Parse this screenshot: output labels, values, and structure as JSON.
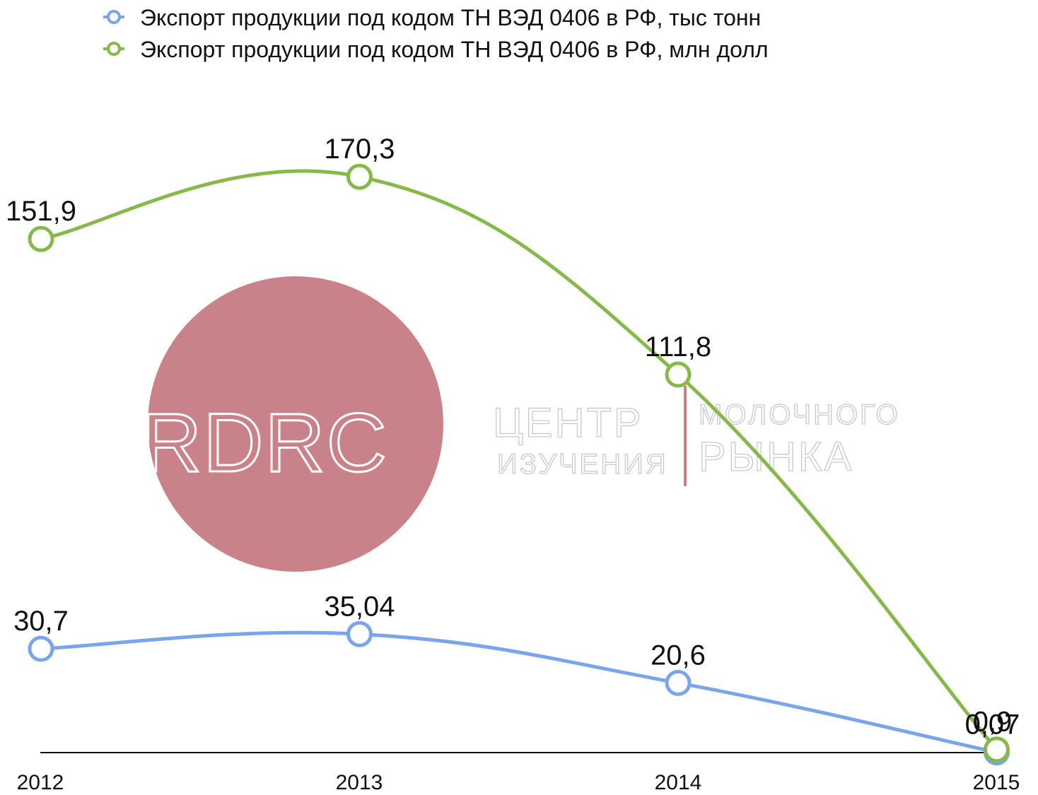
{
  "colors": {
    "series_tonnes": "#7aa5ec",
    "series_usd": "#86b84a",
    "axis": "#111111",
    "watermark_circle": "#c9828a",
    "watermark_divider": "#c9828a"
  },
  "watermark": {
    "logo_text": "RDRC",
    "line1_left": "ЦЕНТР",
    "line2_left": "ИЗУЧЕНИЯ",
    "line1_right": "МОЛОЧНОГО",
    "line2_right": "РЫНКА"
  },
  "chart_data": {
    "type": "line",
    "categories": [
      "2012",
      "2013",
      "2014",
      "2015"
    ],
    "series": [
      {
        "name": "Экспорт продукции под кодом ТН ВЭД 0406 в РФ, тыс тонн",
        "values": [
          30.7,
          35.04,
          20.6,
          0.07
        ],
        "labels": [
          "30,7",
          "35,04",
          "20,6",
          "0,07"
        ]
      },
      {
        "name": "Экспорт продукции под кодом ТН ВЭД 0406 в РФ, млн долл",
        "values": [
          151.9,
          170.3,
          111.8,
          0.9
        ],
        "labels": [
          "151,9",
          "170,3",
          "111,8",
          "0,9"
        ]
      }
    ],
    "ylim": [
      0,
      190
    ],
    "legend": "top",
    "grid": false,
    "smooth": true
  }
}
